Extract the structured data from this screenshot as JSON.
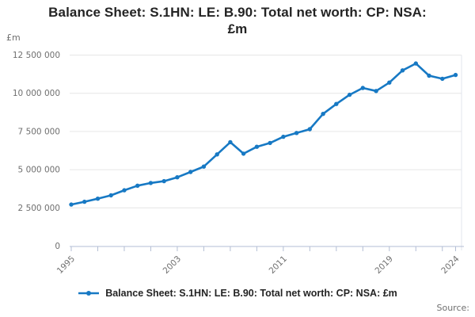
{
  "header": {
    "title_line1": "Balance Sheet: S.1HN: LE: B.90: Total net worth: CP: NSA:",
    "title_line2": "£m"
  },
  "chart_data": {
    "type": "line",
    "title": "Balance Sheet: S.1HN: LE: B.90: Total net worth: CP: NSA: £m",
    "unit_label": "£m",
    "xlabel": "",
    "ylabel": "£m",
    "ylim": [
      0,
      12500000
    ],
    "grid": "horizontal",
    "legend_position": "bottom-center",
    "x": [
      1995,
      1996,
      1997,
      1998,
      1999,
      2000,
      2001,
      2002,
      2003,
      2004,
      2005,
      2006,
      2007,
      2008,
      2009,
      2010,
      2011,
      2012,
      2013,
      2014,
      2015,
      2016,
      2017,
      2018,
      2019,
      2020,
      2021,
      2022,
      2023,
      2024
    ],
    "series": [
      {
        "name": "Balance Sheet: S.1HN: LE: B.90: Total net worth: CP: NSA: £m",
        "color": "#1779c4",
        "values": [
          2720000,
          2900000,
          3100000,
          3320000,
          3650000,
          3950000,
          4130000,
          4250000,
          4500000,
          4850000,
          5200000,
          6000000,
          6800000,
          6050000,
          6500000,
          6750000,
          7150000,
          7400000,
          7650000,
          8650000,
          9300000,
          9900000,
          10350000,
          10150000,
          10700000,
          11500000,
          11950000,
          11150000,
          10950000,
          11200000
        ]
      }
    ],
    "y_ticks": [
      {
        "value": 0,
        "label": "0"
      },
      {
        "value": 2500000,
        "label": "2 500 000"
      },
      {
        "value": 5000000,
        "label": "5 000 000"
      },
      {
        "value": 7500000,
        "label": "7 500 000"
      },
      {
        "value": 10000000,
        "label": "10 000 000"
      },
      {
        "value": 12500000,
        "label": "12 500 000"
      }
    ],
    "x_tick_years": [
      1995,
      1997,
      1999,
      2001,
      2003,
      2005,
      2007,
      2009,
      2011,
      2013,
      2015,
      2017,
      2019,
      2021,
      2023,
      2024
    ],
    "x_labeled_ticks": [
      {
        "year": 1995,
        "label": "1995"
      },
      {
        "year": 2003,
        "label": "2003"
      },
      {
        "year": 2011,
        "label": "2011"
      },
      {
        "year": 2019,
        "label": "2019"
      },
      {
        "year": 2024,
        "label": "2024"
      }
    ]
  },
  "legend": {
    "label": "Balance Sheet: S.1HN: LE: B.90: Total net worth: CP: NSA: £m"
  },
  "footer": {
    "source_label": "Source:"
  },
  "colors": {
    "accent": "#1779c4",
    "grid": "#e6e6e6",
    "axis": "#b3bed4",
    "plot_border": "#e2e6ee",
    "muted_text": "#6f6f6f",
    "title_text": "#242424"
  }
}
